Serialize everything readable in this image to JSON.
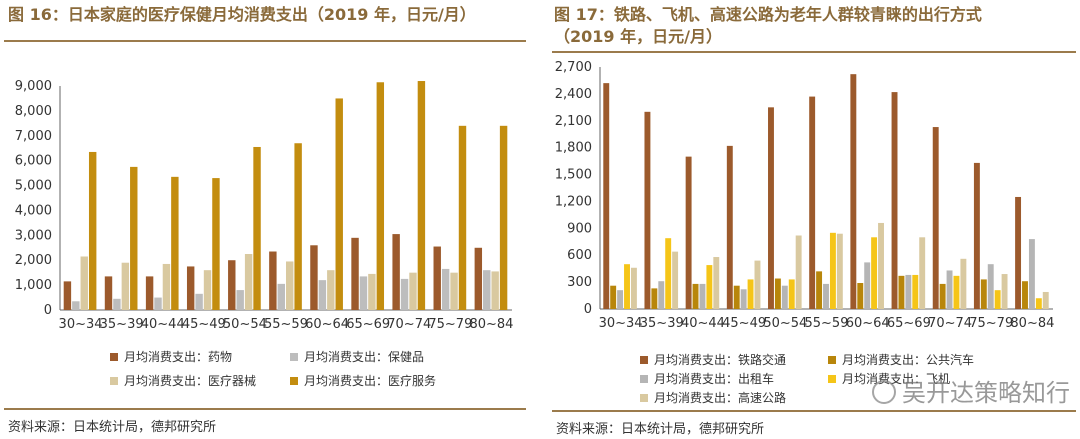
{
  "watermark": "吴开达策略知行",
  "chart_data": [
    {
      "type": "bar",
      "title": "图 16：日本家庭的医疗保健月均消费支出（2019 年，日元/月）",
      "source": "资料来源：日本统计局，德邦研究所",
      "categories": [
        "30~34",
        "35~39",
        "40~44",
        "45~49",
        "50~54",
        "55~59",
        "60~64",
        "65~69",
        "70~74",
        "75~79",
        "80~84"
      ],
      "ylim": [
        0,
        9000
      ],
      "yticks": [
        0,
        1000,
        2000,
        3000,
        4000,
        5000,
        6000,
        7000,
        8000,
        9000
      ],
      "ytick_labels": [
        "0",
        "1,000",
        "2,000",
        "3,000",
        "4,000",
        "5,000",
        "6,000",
        "7,000",
        "8,000",
        "9,000"
      ],
      "series": [
        {
          "name": "月均消费支出：药物",
          "color": "#9c5a2c",
          "values": [
            1150,
            1350,
            1350,
            1750,
            2000,
            2350,
            2600,
            2900,
            3050,
            2550,
            2500
          ]
        },
        {
          "name": "月均消费支出：保健品",
          "color": "#bdbdbd",
          "values": [
            350,
            450,
            500,
            650,
            800,
            1050,
            1200,
            1350,
            1250,
            1650,
            1600
          ]
        },
        {
          "name": "月均消费支出：医疗器械",
          "color": "#d9c9a0",
          "values": [
            2150,
            1900,
            1850,
            1600,
            2250,
            1950,
            1600,
            1450,
            1500,
            1500,
            1550
          ]
        },
        {
          "name": "月均消费支出：医疗服务",
          "color": "#c38d0f",
          "values": [
            6350,
            5750,
            5350,
            5300,
            6550,
            6700,
            8500,
            9150,
            9200,
            7400,
            7400
          ]
        }
      ]
    },
    {
      "type": "bar",
      "title": "图 17：铁路、飞机、高速公路为老年人群较青睐的出行方式（2019 年，日元/月）",
      "title_lines": [
        "图 17：铁路、飞机、高速公路为老年人群较青睐的出行方式",
        "（2019 年，日元/月）"
      ],
      "source": "资料来源：日本统计局，德邦研究所",
      "categories": [
        "30~34",
        "35~39",
        "40~44",
        "45~49",
        "50~54",
        "55~59",
        "60~64",
        "65~69",
        "70~74",
        "75~79",
        "80~84"
      ],
      "ylim": [
        0,
        2700
      ],
      "yticks": [
        0,
        300,
        600,
        900,
        1200,
        1500,
        1800,
        2100,
        2400,
        2700
      ],
      "ytick_labels": [
        "0",
        "300",
        "600",
        "900",
        "1,200",
        "1,500",
        "1,800",
        "2,100",
        "2,400",
        "2,700"
      ],
      "series": [
        {
          "name": "月均消费支出：铁路交通",
          "color": "#9c5a2c",
          "values": [
            2520,
            2200,
            1700,
            1820,
            2250,
            2370,
            2620,
            2420,
            2030,
            1630,
            1250
          ]
        },
        {
          "name": "月均消费支出：公共汽车",
          "color": "#b8860b",
          "values": [
            260,
            230,
            280,
            260,
            340,
            420,
            290,
            370,
            280,
            330,
            310
          ]
        },
        {
          "name": "月均消费支出：出租车",
          "color": "#b5b5b5",
          "values": [
            210,
            310,
            280,
            220,
            260,
            280,
            520,
            380,
            430,
            500,
            780
          ]
        },
        {
          "name": "月均消费支出：飞机",
          "color": "#f5c518",
          "values": [
            500,
            790,
            490,
            330,
            330,
            850,
            800,
            380,
            370,
            210,
            120
          ]
        },
        {
          "name": "月均消费支出：高速公路",
          "color": "#d9c9a0",
          "values": [
            460,
            640,
            580,
            540,
            820,
            840,
            960,
            800,
            560,
            390,
            190
          ]
        }
      ]
    }
  ]
}
